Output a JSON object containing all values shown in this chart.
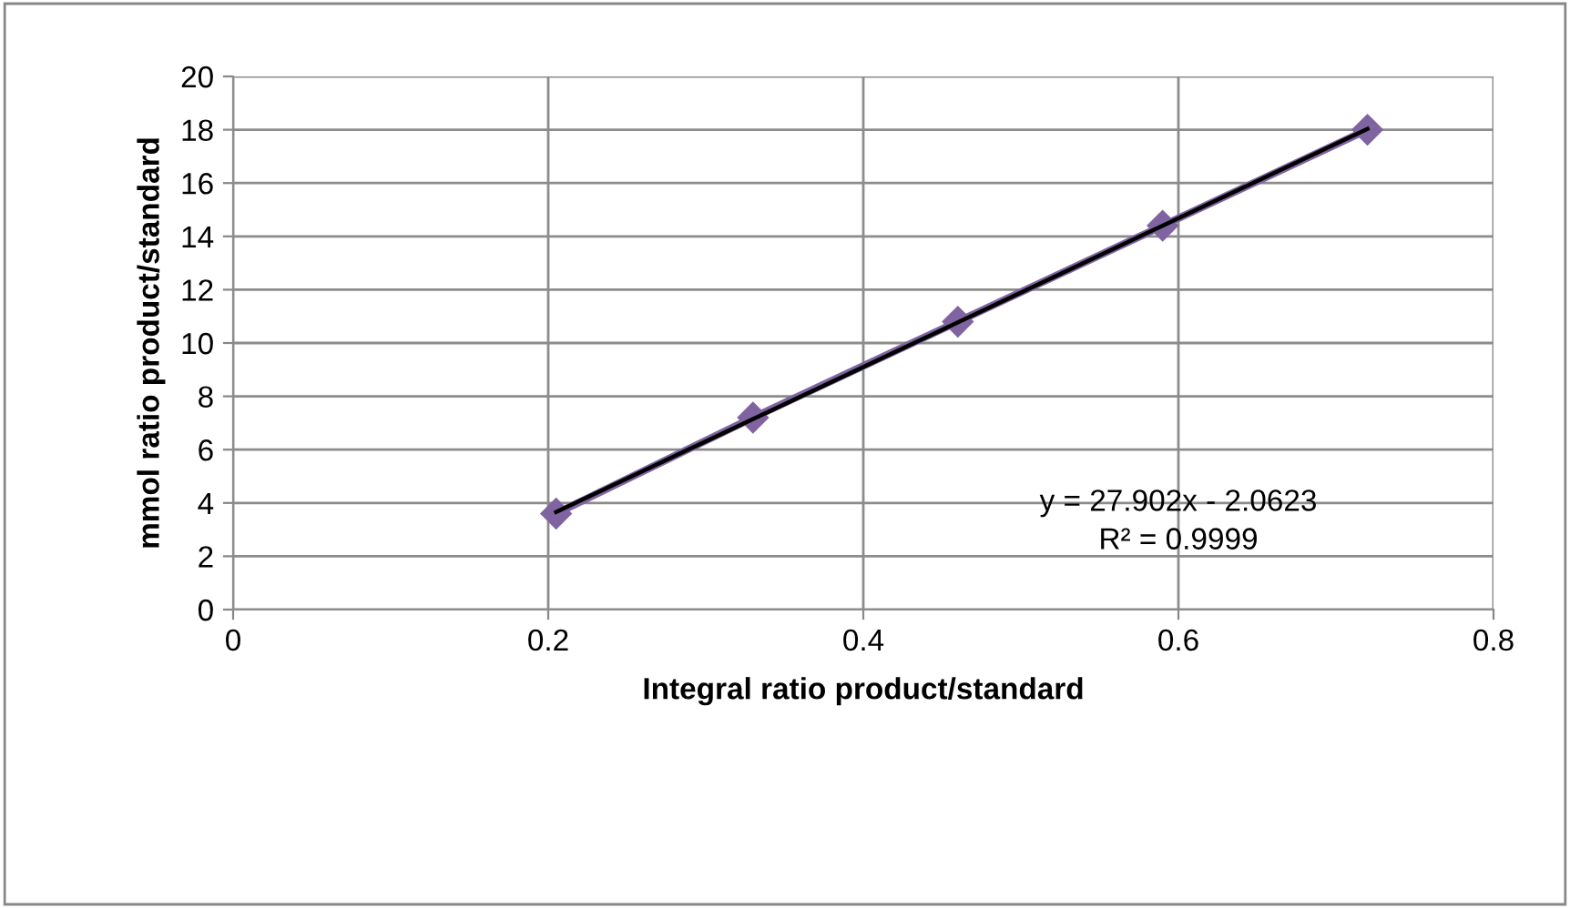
{
  "chart_data": {
    "type": "line",
    "xlabel": "Integral ratio product/standard",
    "ylabel": "mmol ratio product/standard",
    "x": [
      0.205,
      0.33,
      0.46,
      0.59,
      0.72
    ],
    "series": [
      {
        "color": "#8064a2",
        "values": [
          3.6,
          7.2,
          10.8,
          14.4,
          18.0
        ],
        "marker": "diamond"
      },
      {
        "color": "#000000",
        "x": [
          0.205,
          0.72
        ],
        "values": [
          3.66,
          18.03
        ],
        "marker": "none"
      }
    ],
    "xlim": [
      0,
      0.8
    ],
    "xticks": [
      0,
      0.2,
      0.4,
      0.6,
      0.8
    ],
    "ylim": [
      0,
      20
    ],
    "yticks": [
      0,
      2,
      4,
      6,
      8,
      10,
      12,
      14,
      16,
      18,
      20
    ],
    "grid": true,
    "annotations": [
      "y = 27.902x - 2.0623",
      "R² = 0.9999"
    ]
  }
}
